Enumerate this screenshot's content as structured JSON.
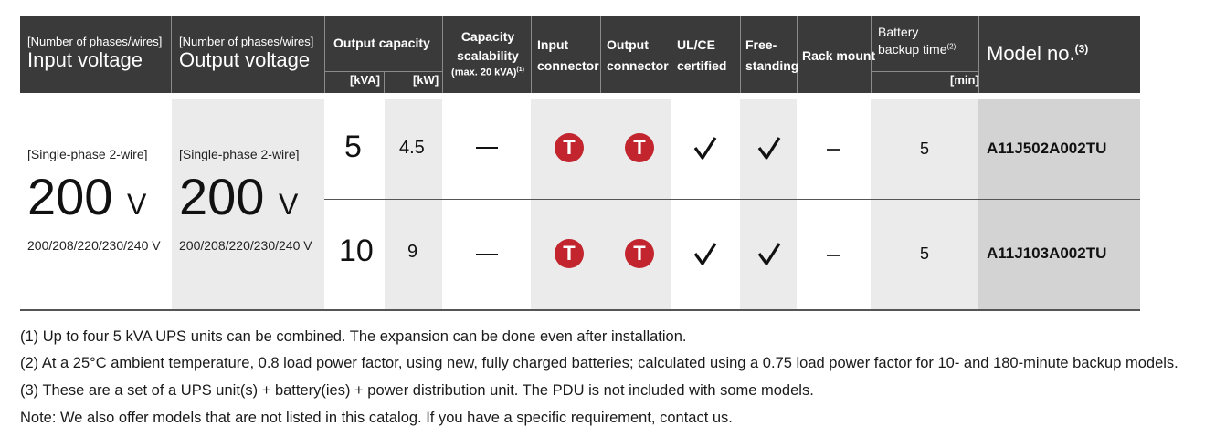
{
  "header": {
    "input_label_small": "[Number of phases/wires]",
    "input_label_big": "Input voltage",
    "output_label_small": "[Number of phases/wires]",
    "output_label_big": "Output voltage",
    "output_capacity": "Output capacity",
    "unit_kva": "[kVA]",
    "unit_kw": "[kW]",
    "capacity_scalability_l1": "Capacity",
    "capacity_scalability_l2": "scalability",
    "capacity_scalability_l3": "(max. 20 kVA)",
    "capacity_scalability_sup": "(1)",
    "input_connector_l1": "Input",
    "input_connector_l2": "connector",
    "output_connector_l1": "Output",
    "output_connector_l2": "connector",
    "ulce_l1": "UL/CE",
    "ulce_l2": "certified",
    "free_l1": "Free-",
    "free_l2": "standing",
    "rack_mount": "Rack mount",
    "battery_l1": "Battery",
    "battery_l2": "backup time",
    "battery_sup": "(2)",
    "unit_min": "[min]",
    "model_no": "Model no.",
    "model_sup": "(3)"
  },
  "input": {
    "phase": "[Single-phase 2-wire]",
    "voltage": "200",
    "unit": "V",
    "range": "200/208/220/230/240 V"
  },
  "output": {
    "phase": "[Single-phase 2-wire]",
    "voltage": "200",
    "unit": "V",
    "range": "200/208/220/230/240 V"
  },
  "rows": [
    {
      "kva": "5",
      "kw": "4.5",
      "input_connector": "T",
      "output_connector": "T",
      "battery_min": "5",
      "model": "A11J502A002TU"
    },
    {
      "kva": "10",
      "kw": "9",
      "input_connector": "T",
      "output_connector": "T",
      "battery_min": "5",
      "model": "A11J103A002TU"
    }
  ],
  "icons": {
    "connector": "t-connector-icon",
    "ulce": "checkmark-icon",
    "free_standing": "checkmark-icon",
    "scalability": "dash-icon",
    "rack_mount": "dash-icon"
  },
  "colors": {
    "header_bg": "#3a3a3a",
    "connector_red": "#c2252e"
  },
  "notes": [
    "(1) Up to four 5 kVA UPS units can be combined. The expansion can be done even after installation.",
    "(2) At a 25°C ambient temperature, 0.8 load power factor, using new, fully charged batteries; calculated using a 0.75 load power factor for 10- and 180-minute backup models.",
    "(3) These are a set of a UPS unit(s) + battery(ies) + power distribution unit. The PDU is not included with some models.",
    "Note: We also offer models that are not listed in this catalog. If you have a specific requirement, contact us."
  ]
}
